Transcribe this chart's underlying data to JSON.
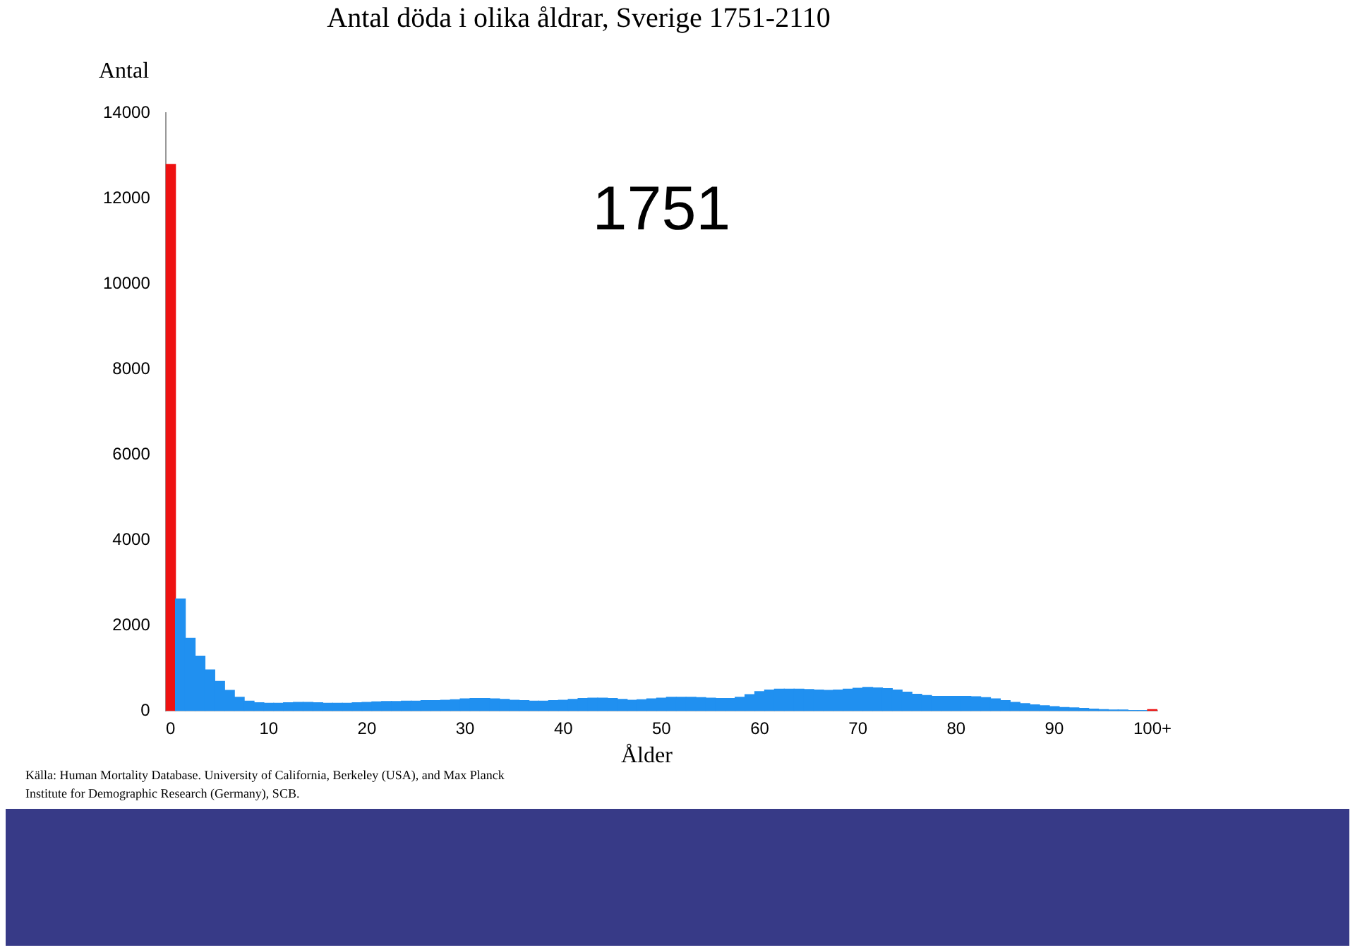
{
  "chart_data": {
    "type": "histogram",
    "title": "Antal döda i olika åldrar, Sverige 1751-2110",
    "ylabel": "Antal",
    "xlabel": "Ålder",
    "annotations": [
      "1751",
      "Källa: Human Mortality Database. University of California, Berkeley (USA), and Max Planck Institute for Demographic Research (Germany), SCB."
    ],
    "bins": [
      0,
      1,
      2,
      3,
      4,
      5,
      6,
      7,
      8,
      9,
      10,
      11,
      12,
      13,
      14,
      15,
      16,
      17,
      18,
      19,
      20,
      21,
      22,
      23,
      24,
      25,
      26,
      27,
      28,
      29,
      30,
      31,
      32,
      33,
      34,
      35,
      36,
      37,
      38,
      39,
      40,
      41,
      42,
      43,
      44,
      45,
      46,
      47,
      48,
      49,
      50,
      51,
      52,
      53,
      54,
      55,
      56,
      57,
      58,
      59,
      60,
      61,
      62,
      63,
      64,
      65,
      66,
      67,
      68,
      69,
      70,
      71,
      72,
      73,
      74,
      75,
      76,
      77,
      78,
      79,
      80,
      81,
      82,
      83,
      84,
      85,
      86,
      87,
      88,
      89,
      90,
      91,
      92,
      93,
      94,
      95,
      96,
      97,
      98,
      99,
      100,
      101
    ],
    "xlim": [
      0,
      101
    ],
    "xticks": [
      {
        "value": 0.5,
        "label": "0"
      },
      {
        "value": 10.5,
        "label": "10"
      },
      {
        "value": 20.5,
        "label": "20"
      },
      {
        "value": 30.5,
        "label": "30"
      },
      {
        "value": 40.5,
        "label": "40"
      },
      {
        "value": 50.5,
        "label": "50"
      },
      {
        "value": 60.5,
        "label": "60"
      },
      {
        "value": 70.5,
        "label": "70"
      },
      {
        "value": 80.5,
        "label": "80"
      },
      {
        "value": 90.5,
        "label": "90"
      },
      {
        "value": 100.5,
        "label": "100+"
      }
    ],
    "values": [
      12800,
      2620,
      1700,
      1280,
      960,
      690,
      480,
      320,
      230,
      190,
      180,
      180,
      190,
      200,
      200,
      190,
      180,
      180,
      180,
      190,
      200,
      210,
      220,
      220,
      230,
      230,
      240,
      240,
      250,
      260,
      280,
      290,
      290,
      280,
      270,
      250,
      240,
      230,
      230,
      240,
      250,
      270,
      290,
      300,
      300,
      290,
      270,
      250,
      260,
      280,
      300,
      320,
      320,
      320,
      310,
      300,
      290,
      290,
      320,
      380,
      450,
      490,
      510,
      510,
      510,
      500,
      490,
      480,
      490,
      510,
      530,
      550,
      540,
      520,
      490,
      440,
      390,
      360,
      340,
      340,
      340,
      340,
      330,
      310,
      280,
      240,
      200,
      170,
      140,
      120,
      100,
      80,
      70,
      60,
      40,
      30,
      20,
      20,
      10,
      10,
      30
    ],
    "colors": [
      "#ee1111",
      "#2090f0",
      "#2090f0",
      "#2090f0",
      "#2090f0",
      "#2090f0",
      "#2090f0",
      "#2090f0",
      "#2090f0",
      "#2090f0",
      "#2090f0",
      "#2090f0",
      "#2090f0",
      "#2090f0",
      "#2090f0",
      "#2090f0",
      "#2090f0",
      "#2090f0",
      "#2090f0",
      "#2090f0",
      "#2090f0",
      "#2090f0",
      "#2090f0",
      "#2090f0",
      "#2090f0",
      "#2090f0",
      "#2090f0",
      "#2090f0",
      "#2090f0",
      "#2090f0",
      "#2090f0",
      "#2090f0",
      "#2090f0",
      "#2090f0",
      "#2090f0",
      "#2090f0",
      "#2090f0",
      "#2090f0",
      "#2090f0",
      "#2090f0",
      "#2090f0",
      "#2090f0",
      "#2090f0",
      "#2090f0",
      "#2090f0",
      "#2090f0",
      "#2090f0",
      "#2090f0",
      "#2090f0",
      "#2090f0",
      "#2090f0",
      "#2090f0",
      "#2090f0",
      "#2090f0",
      "#2090f0",
      "#2090f0",
      "#2090f0",
      "#2090f0",
      "#2090f0",
      "#2090f0",
      "#2090f0",
      "#2090f0",
      "#2090f0",
      "#2090f0",
      "#2090f0",
      "#2090f0",
      "#2090f0",
      "#2090f0",
      "#2090f0",
      "#2090f0",
      "#2090f0",
      "#2090f0",
      "#2090f0",
      "#2090f0",
      "#2090f0",
      "#2090f0",
      "#2090f0",
      "#2090f0",
      "#2090f0",
      "#2090f0",
      "#2090f0",
      "#2090f0",
      "#2090f0",
      "#2090f0",
      "#2090f0",
      "#2090f0",
      "#2090f0",
      "#2090f0",
      "#2090f0",
      "#2090f0",
      "#2090f0",
      "#2090f0",
      "#2090f0",
      "#2090f0",
      "#2090f0",
      "#2090f0",
      "#2090f0",
      "#2090f0",
      "#2090f0",
      "#2090f0",
      "#ee1111"
    ],
    "ylim": [
      0,
      14000
    ],
    "yticks": [
      0,
      2000,
      4000,
      6000,
      8000,
      10000,
      12000,
      14000
    ],
    "grid": false,
    "legend": false
  }
}
